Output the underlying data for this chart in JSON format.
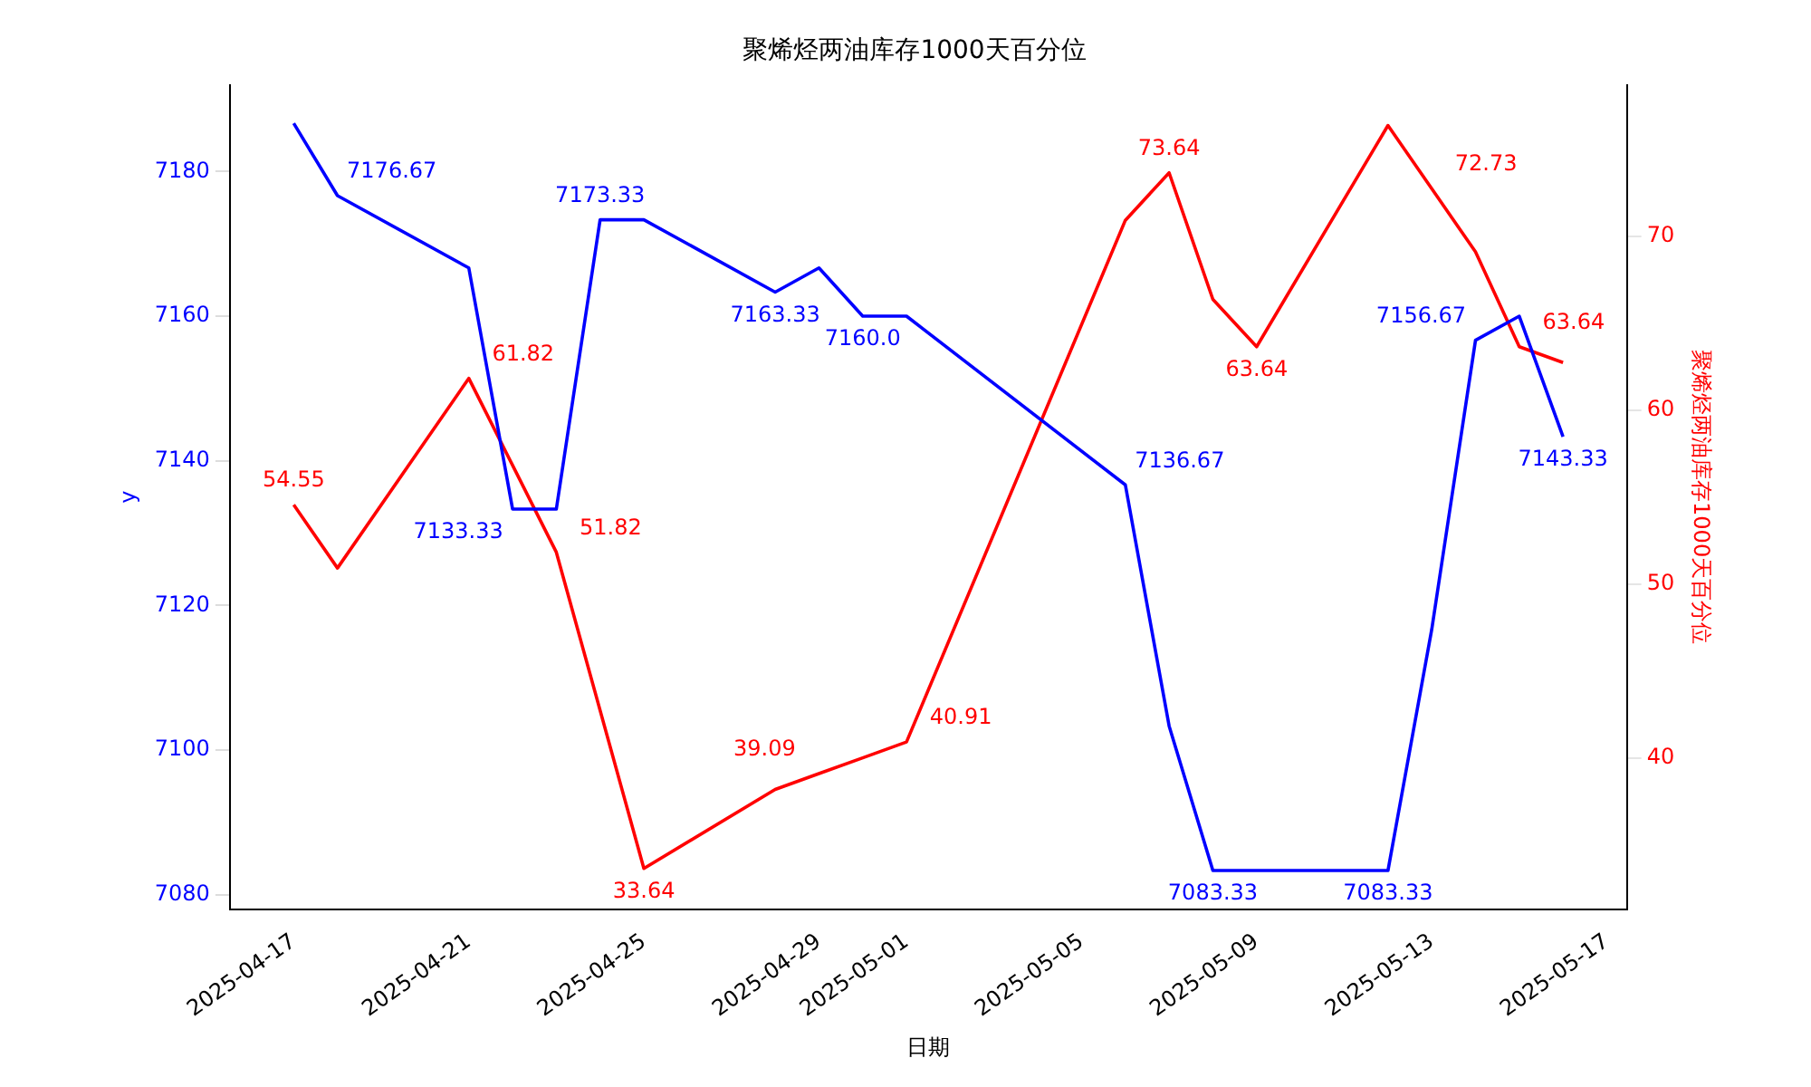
{
  "chart_data": {
    "type": "line",
    "title": "聚烯烃两油库存1000天百分位",
    "xlabel": "日期",
    "ylabel": "y",
    "y2label": "聚烯烃两油库存1000天百分位",
    "x": [
      "2025-04-17",
      "2025-04-18",
      "2025-04-21",
      "2025-04-22",
      "2025-04-23",
      "2025-04-24",
      "2025-04-25",
      "2025-04-28",
      "2025-04-29",
      "2025-04-30",
      "2025-05-01",
      "2025-05-06",
      "2025-05-07",
      "2025-05-08",
      "2025-05-09",
      "2025-05-12",
      "2025-05-13",
      "2025-05-14",
      "2025-05-15",
      "2025-05-16"
    ],
    "xlim": [
      "2025-04-15T13:00",
      "2025-05-17T11:00"
    ],
    "xticks": [
      "2025-04-17",
      "2025-04-21",
      "2025-04-25",
      "2025-04-29",
      "2025-05-01",
      "2025-05-05",
      "2025-05-09",
      "2025-05-13",
      "2025-05-17"
    ],
    "ylim": [
      7078,
      7192
    ],
    "yticks": [
      7080,
      7100,
      7120,
      7140,
      7160,
      7180
    ],
    "y2lim": [
      31.3,
      78.7
    ],
    "y2ticks": [
      40,
      50,
      60,
      70
    ],
    "grid": false,
    "legend": false,
    "marker": "none",
    "line_style": "solid",
    "series": [
      {
        "color": "#0000ff",
        "values": [
          7186.67,
          7176.67,
          7166.67,
          7133.33,
          7133.33,
          7173.33,
          7173.33,
          7163.33,
          7166.67,
          7160,
          7160,
          7136.67,
          7103.33,
          7083.33,
          7083.33,
          7083.33,
          7116.67,
          7156.67,
          7160,
          7143.33
        ],
        "value_labels": [
          null,
          "7176.67",
          null,
          "7133.33",
          null,
          "7173.33",
          null,
          "7163.33",
          null,
          "7160.0",
          null,
          "7136.67",
          null,
          "7083.33",
          null,
          "7083.33",
          null,
          "7156.67",
          null,
          "7143.33"
        ]
      },
      {
        "color": "#ff0000",
        "axis": "y2",
        "values": [
          54.55,
          50.91,
          61.82,
          56.82,
          51.82,
          42.73,
          33.64,
          38.18,
          39.09,
          40,
          40.91,
          70.91,
          73.64,
          66.36,
          63.64,
          76.36,
          72.73,
          69.09,
          63.64,
          62.73
        ],
        "value_labels": [
          "54.55",
          null,
          "61.82",
          null,
          "51.82",
          null,
          "33.64",
          null,
          "39.09",
          null,
          "40.91",
          null,
          "73.64",
          null,
          "63.64",
          null,
          "72.73",
          null,
          "63.64",
          null
        ]
      }
    ]
  }
}
